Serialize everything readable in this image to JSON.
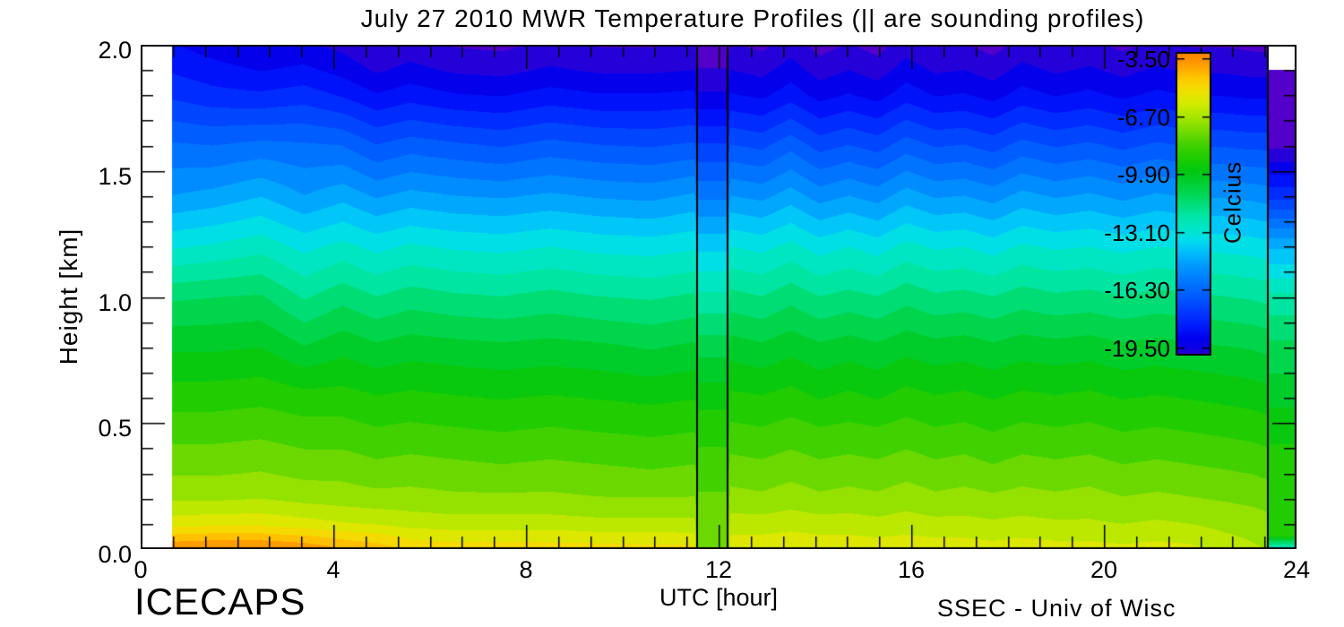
{
  "title": "July 27 2010 MWR Temperature Profiles (|| are sounding profiles)",
  "branding": {
    "left": "ICECAPS",
    "right": "SSEC - Univ of Wisc"
  },
  "chart_data": {
    "type": "heatmap",
    "title": "July 27 2010 MWR Temperature Profiles (|| are sounding profiles)",
    "xlabel": "UTC [hour]",
    "ylabel": "Height [km]",
    "colorbar_label": "Celcius",
    "xlim": [
      0,
      24
    ],
    "ylim": [
      0,
      2
    ],
    "x_tick_values": [
      0,
      4,
      8,
      12,
      16,
      20,
      24
    ],
    "x_tick_labels": [
      "0",
      "4",
      "8",
      "12",
      "16",
      "20",
      "24"
    ],
    "y_tick_values": [
      2.0,
      1.5,
      1.0,
      0.5,
      0.0
    ],
    "y_tick_labels": [
      "2.0",
      "1.5",
      "1.0",
      "0.5",
      "0.0"
    ],
    "colorbar_tick_values": [
      -3.5,
      -6.7,
      -9.9,
      -13.1,
      -16.3,
      -19.5
    ],
    "colorbar_tick_labels": [
      "-3.50",
      "-6.70",
      "-9.90",
      "-13.10",
      "-16.30",
      "-19.50"
    ],
    "colorbar_value_range": [
      -3.15,
      -19.95
    ],
    "contour_step_c": 0.64,
    "data_start_hour": 0.65,
    "sounding_lines_utc": [
      11.55,
      12.19,
      23.4
    ],
    "grid_on": false,
    "legend": "colorbar-right",
    "colormap": [
      [
        -20.6,
        "#5a00c8"
      ],
      [
        -20.0,
        "#3900d2"
      ],
      [
        -19.6,
        "#0f00e1"
      ],
      [
        -19.0,
        "#0000f0"
      ],
      [
        -18.2,
        "#0020ff"
      ],
      [
        -17.0,
        "#0050ff"
      ],
      [
        -16.0,
        "#0073ff"
      ],
      [
        -15.0,
        "#0098ff"
      ],
      [
        -14.2,
        "#00c0fa"
      ],
      [
        -13.6,
        "#00dcf0"
      ],
      [
        -13.0,
        "#00e6cd"
      ],
      [
        -12.2,
        "#00e6a5"
      ],
      [
        -11.4,
        "#00dc6e"
      ],
      [
        -10.6,
        "#00d23c"
      ],
      [
        -9.8,
        "#00c814"
      ],
      [
        -9.0,
        "#1ecd00"
      ],
      [
        -8.2,
        "#46d200"
      ],
      [
        -7.4,
        "#7ddc00"
      ],
      [
        -6.7,
        "#aae600"
      ],
      [
        -6.0,
        "#d2eb00"
      ],
      [
        -5.3,
        "#f0e100"
      ],
      [
        -4.6,
        "#ffc800"
      ],
      [
        -3.9,
        "#ffa000"
      ],
      [
        -3.2,
        "#ff8200"
      ],
      [
        -2.8,
        "#ff7300"
      ]
    ],
    "heights_km": [
      0,
      0.05,
      0.1,
      0.2,
      0.3,
      0.4,
      0.5,
      0.6,
      0.8,
      1.0,
      1.2,
      1.4,
      1.6,
      1.8,
      1.9,
      2.0
    ],
    "columns": [
      {
        "t": 0.65,
        "temps": [
          -3.5,
          -4.6,
          -5.7,
          -6.8,
          -7.4,
          -7.9,
          -8.4,
          -8.9,
          -10.0,
          -11.3,
          -13.2,
          -15.0,
          -16.2,
          -17.7,
          -18.3,
          -18.8
        ]
      },
      {
        "t": 1.5,
        "temps": [
          -3.3,
          -4.5,
          -5.6,
          -6.8,
          -7.4,
          -7.9,
          -8.4,
          -8.9,
          -10.0,
          -11.2,
          -13.0,
          -14.8,
          -16.3,
          -18.0,
          -18.6,
          -19.2
        ]
      },
      {
        "t": 2.5,
        "temps": [
          -3.3,
          -4.5,
          -5.6,
          -6.7,
          -7.3,
          -7.8,
          -8.3,
          -8.8,
          -9.9,
          -11.1,
          -12.7,
          -14.4,
          -16.1,
          -18.1,
          -18.9,
          -19.5
        ]
      },
      {
        "t": 3.4,
        "temps": [
          -3.6,
          -4.7,
          -5.8,
          -6.9,
          -7.5,
          -8.0,
          -8.5,
          -9.0,
          -10.5,
          -11.9,
          -13.3,
          -15.0,
          -16.2,
          -17.9,
          -18.7,
          -19.4
        ]
      },
      {
        "t": 4.2,
        "temps": [
          -4.1,
          -5.0,
          -6.0,
          -7.0,
          -7.5,
          -8.0,
          -8.5,
          -9.0,
          -10.1,
          -11.4,
          -12.9,
          -14.6,
          -16.3,
          -18.3,
          -19.1,
          -19.7
        ]
      },
      {
        "t": 4.9,
        "temps": [
          -4.4,
          -5.2,
          -6.1,
          -7.1,
          -7.7,
          -8.2,
          -8.7,
          -9.2,
          -10.4,
          -11.8,
          -13.3,
          -15.1,
          -16.9,
          -18.8,
          -19.6,
          -20.2
        ]
      },
      {
        "t": 5.6,
        "temps": [
          -4.9,
          -5.6,
          -6.3,
          -7.1,
          -7.6,
          -8.1,
          -8.6,
          -9.1,
          -10.2,
          -11.5,
          -13.0,
          -14.8,
          -16.6,
          -18.5,
          -19.3,
          -19.9
        ]
      },
      {
        "t": 6.5,
        "temps": [
          -5.0,
          -5.7,
          -6.4,
          -7.2,
          -7.7,
          -8.2,
          -8.7,
          -9.2,
          -10.3,
          -11.7,
          -13.2,
          -15.0,
          -16.8,
          -18.8,
          -19.6,
          -20.2
        ]
      },
      {
        "t": 7.5,
        "temps": [
          -5.0,
          -5.7,
          -6.4,
          -7.2,
          -7.8,
          -8.3,
          -8.8,
          -9.3,
          -10.4,
          -11.8,
          -13.3,
          -15.1,
          -17.0,
          -18.9,
          -19.7,
          -20.3
        ]
      },
      {
        "t": 8.5,
        "temps": [
          -5.1,
          -5.7,
          -6.4,
          -7.2,
          -7.7,
          -8.2,
          -8.7,
          -9.2,
          -10.3,
          -11.6,
          -13.1,
          -14.9,
          -16.7,
          -18.6,
          -19.4,
          -20.0
        ]
      },
      {
        "t": 9.5,
        "temps": [
          -5.1,
          -5.8,
          -6.5,
          -7.3,
          -7.8,
          -8.3,
          -8.8,
          -9.3,
          -10.4,
          -11.8,
          -13.3,
          -15.1,
          -16.9,
          -18.8,
          -19.6,
          -20.2
        ]
      },
      {
        "t": 10.6,
        "temps": [
          -5.2,
          -5.8,
          -6.5,
          -7.3,
          -7.9,
          -8.4,
          -8.9,
          -9.4,
          -10.6,
          -11.9,
          -13.4,
          -15.2,
          -17.0,
          -18.8,
          -19.6,
          -20.2
        ]
      },
      {
        "t": 11.5,
        "temps": [
          -5.2,
          -5.9,
          -6.5,
          -7.3,
          -7.8,
          -8.3,
          -8.8,
          -9.3,
          -10.4,
          -11.7,
          -13.2,
          -14.9,
          -16.8,
          -18.7,
          -19.5,
          -20.1
        ]
      },
      {
        "t": 11.58,
        "temps": [
          -7.8,
          -7.8,
          -7.8,
          -7.9,
          -8.2,
          -8.6,
          -9.0,
          -9.5,
          -10.8,
          -12.3,
          -13.9,
          -15.8,
          -17.5,
          -19.4,
          -20.1,
          -20.6
        ]
      },
      {
        "t": 12.18,
        "temps": [
          -7.8,
          -7.8,
          -7.8,
          -7.9,
          -8.2,
          -8.6,
          -9.0,
          -9.5,
          -10.8,
          -12.3,
          -13.9,
          -15.8,
          -17.5,
          -19.4,
          -20.1,
          -20.6
        ]
      },
      {
        "t": 12.25,
        "temps": [
          -5.6,
          -6.0,
          -6.4,
          -7.1,
          -7.6,
          -8.1,
          -8.6,
          -9.1,
          -10.2,
          -11.6,
          -13.1,
          -15.0,
          -16.9,
          -18.8,
          -19.5,
          -20.1
        ]
      },
      {
        "t": 12.9,
        "temps": [
          -5.6,
          -6.0,
          -6.4,
          -7.2,
          -7.7,
          -8.2,
          -8.7,
          -9.2,
          -10.4,
          -11.8,
          -13.3,
          -15.2,
          -17.1,
          -19.0,
          -19.7,
          -20.3
        ]
      },
      {
        "t": 13.5,
        "temps": [
          -5.5,
          -5.9,
          -6.3,
          -7.0,
          -7.5,
          -8.0,
          -8.5,
          -9.0,
          -10.1,
          -11.4,
          -12.9,
          -14.7,
          -16.5,
          -18.5,
          -19.2,
          -19.8
        ]
      },
      {
        "t": 14.1,
        "temps": [
          -5.6,
          -6.0,
          -6.4,
          -7.2,
          -7.7,
          -8.2,
          -8.7,
          -9.3,
          -10.4,
          -11.8,
          -13.4,
          -15.3,
          -17.2,
          -19.1,
          -19.8,
          -20.4
        ]
      },
      {
        "t": 14.7,
        "temps": [
          -5.6,
          -6.0,
          -6.4,
          -7.1,
          -7.6,
          -8.1,
          -8.6,
          -9.1,
          -10.2,
          -11.6,
          -13.1,
          -15.0,
          -16.9,
          -18.8,
          -19.5,
          -20.1
        ]
      },
      {
        "t": 15.3,
        "temps": [
          -5.7,
          -6.1,
          -6.5,
          -7.2,
          -7.7,
          -8.2,
          -8.7,
          -9.3,
          -10.4,
          -11.8,
          -13.4,
          -15.3,
          -17.2,
          -19.1,
          -19.8,
          -20.4
        ]
      },
      {
        "t": 15.9,
        "temps": [
          -5.6,
          -6.0,
          -6.4,
          -7.0,
          -7.5,
          -8.0,
          -8.5,
          -9.0,
          -10.1,
          -11.4,
          -12.9,
          -14.7,
          -16.6,
          -18.5,
          -19.2,
          -19.8
        ]
      },
      {
        "t": 16.5,
        "temps": [
          -5.7,
          -6.1,
          -6.5,
          -7.2,
          -7.7,
          -8.2,
          -8.7,
          -9.2,
          -10.3,
          -11.7,
          -13.2,
          -15.1,
          -17.0,
          -18.9,
          -19.6,
          -20.2
        ]
      },
      {
        "t": 17.1,
        "temps": [
          -5.7,
          -6.1,
          -6.5,
          -7.1,
          -7.6,
          -8.1,
          -8.6,
          -9.1,
          -10.2,
          -11.6,
          -13.1,
          -15.0,
          -16.9,
          -18.8,
          -19.5,
          -20.1
        ]
      },
      {
        "t": 17.7,
        "temps": [
          -5.8,
          -6.2,
          -6.6,
          -7.2,
          -7.8,
          -8.3,
          -8.8,
          -9.3,
          -10.4,
          -11.8,
          -13.4,
          -15.3,
          -17.2,
          -19.1,
          -19.8,
          -20.4
        ]
      },
      {
        "t": 18.3,
        "temps": [
          -5.7,
          -6.1,
          -6.5,
          -7.1,
          -7.6,
          -8.1,
          -8.6,
          -9.1,
          -10.2,
          -11.5,
          -13.0,
          -14.8,
          -16.7,
          -18.6,
          -19.3,
          -19.9
        ]
      },
      {
        "t": 19.0,
        "temps": [
          -5.8,
          -6.2,
          -6.6,
          -7.2,
          -7.7,
          -8.2,
          -8.7,
          -9.2,
          -10.3,
          -11.7,
          -13.2,
          -15.1,
          -17.0,
          -18.9,
          -19.6,
          -20.2
        ]
      },
      {
        "t": 19.7,
        "temps": [
          -5.8,
          -6.2,
          -6.6,
          -7.1,
          -7.6,
          -8.1,
          -8.6,
          -9.1,
          -10.2,
          -11.6,
          -13.1,
          -14.9,
          -16.8,
          -18.7,
          -19.4,
          -20.0
        ]
      },
      {
        "t": 20.4,
        "temps": [
          -5.9,
          -6.3,
          -6.7,
          -7.3,
          -7.8,
          -8.3,
          -8.8,
          -9.3,
          -10.4,
          -11.8,
          -13.3,
          -15.2,
          -17.1,
          -19.0,
          -19.7,
          -20.3
        ]
      },
      {
        "t": 21.1,
        "temps": [
          -5.8,
          -6.2,
          -6.6,
          -7.2,
          -7.7,
          -8.2,
          -8.7,
          -9.2,
          -10.3,
          -11.6,
          -13.1,
          -14.9,
          -16.8,
          -18.7,
          -19.4,
          -20.0
        ]
      },
      {
        "t": 21.8,
        "temps": [
          -5.9,
          -6.3,
          -6.7,
          -7.3,
          -7.8,
          -8.3,
          -8.8,
          -9.3,
          -10.4,
          -11.7,
          -13.2,
          -15.1,
          -17.0,
          -18.9,
          -19.6,
          -20.2
        ]
      },
      {
        "t": 22.5,
        "temps": [
          -6.3,
          -6.6,
          -6.9,
          -7.4,
          -7.9,
          -8.4,
          -8.9,
          -9.4,
          -10.5,
          -11.8,
          -13.3,
          -15.1,
          -17.0,
          -18.9,
          -19.6,
          -20.2
        ]
      },
      {
        "t": 23.1,
        "temps": [
          -6.6,
          -6.8,
          -7.0,
          -7.5,
          -8.0,
          -8.5,
          -9.0,
          -9.5,
          -10.6,
          -11.9,
          -13.4,
          -15.2,
          -17.1,
          -19.0,
          -19.7,
          -20.3
        ]
      },
      {
        "t": 23.38,
        "temps": [
          -6.7,
          -6.9,
          -7.1,
          -7.6,
          -8.1,
          -8.6,
          -9.1,
          -9.6,
          -10.7,
          -12.0,
          -13.5,
          -15.3,
          -17.1,
          -19.0,
          -19.7,
          -20.3
        ]
      },
      {
        "t": 23.42,
        "temps": [
          -13.5,
          -9.2,
          -8.8,
          -8.7,
          -8.9,
          -9.2,
          -9.6,
          -10.1,
          -11.0,
          -12.3,
          -14.5,
          -17.8,
          -20.3,
          -20.4,
          -20.4,
          null
        ]
      },
      {
        "t": 24.0,
        "temps": [
          -13.5,
          -9.2,
          -8.8,
          -8.7,
          -8.9,
          -9.2,
          -9.6,
          -10.1,
          -11.0,
          -12.3,
          -14.5,
          -17.8,
          -20.3,
          -20.4,
          -20.4,
          null
        ]
      }
    ]
  }
}
